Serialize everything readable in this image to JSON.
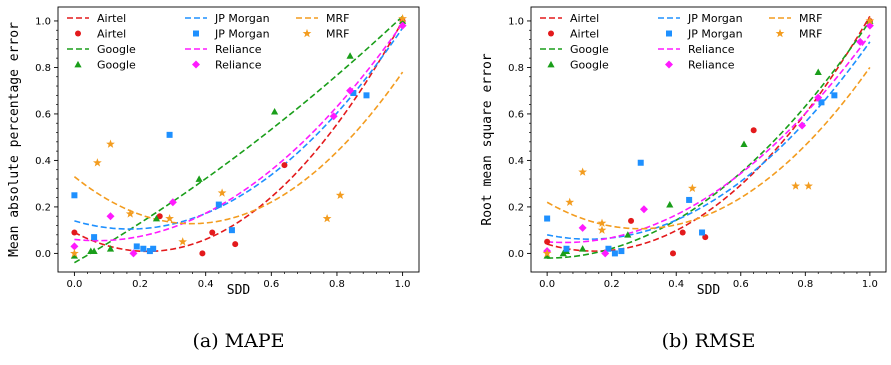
{
  "colors": {
    "Airtel": "#e31a1c",
    "Google": "#1a9e1a",
    "JP Morgan": "#1e90ff",
    "Reliance": "#ff1aff",
    "MRF": "#f39c1f"
  },
  "chart_data": [
    {
      "type": "scatter",
      "caption": "(a) MAPE",
      "xlabel": "SDD",
      "ylabel": "Mean absolute percentage error",
      "xlim": [
        -0.05,
        1.05
      ],
      "ylim": [
        -0.08,
        1.06
      ],
      "xticks": [
        "0.0",
        "0.2",
        "0.4",
        "0.6",
        "0.8",
        "1.0"
      ],
      "yticks": [
        "0.0",
        "0.2",
        "0.4",
        "0.6",
        "0.8",
        "1.0"
      ],
      "legend_position": "top-left",
      "legend": [
        {
          "label": "Airtel",
          "series": "Airtel",
          "kind": "line"
        },
        {
          "label": "Airtel",
          "series": "Airtel",
          "kind": "marker"
        },
        {
          "label": "Google",
          "series": "Google",
          "kind": "line"
        },
        {
          "label": "Google",
          "series": "Google",
          "kind": "marker"
        },
        {
          "label": "JP Morgan",
          "series": "JP Morgan",
          "kind": "line"
        },
        {
          "label": "JP Morgan",
          "series": "JP Morgan",
          "kind": "marker"
        },
        {
          "label": "Reliance",
          "series": "Reliance",
          "kind": "line"
        },
        {
          "label": "Reliance",
          "series": "Reliance",
          "kind": "marker"
        },
        {
          "label": "MRF",
          "series": "MRF",
          "kind": "line"
        },
        {
          "label": "MRF",
          "series": "MRF",
          "kind": "marker"
        }
      ],
      "series": [
        {
          "name": "Airtel",
          "marker": "circle",
          "points": [
            [
              0.0,
              0.09
            ],
            [
              0.26,
              0.16
            ],
            [
              0.39,
              0.0
            ],
            [
              0.42,
              0.09
            ],
            [
              0.49,
              0.04
            ],
            [
              0.64,
              0.38
            ],
            [
              1.0,
              1.0
            ]
          ],
          "fit": [
            0.09,
            -0.73,
            1.64
          ]
        },
        {
          "name": "Google",
          "marker": "triangle",
          "points": [
            [
              0.0,
              -0.01
            ],
            [
              0.05,
              0.01
            ],
            [
              0.06,
              0.01
            ],
            [
              0.11,
              0.02
            ],
            [
              0.25,
              0.15
            ],
            [
              0.38,
              0.32
            ],
            [
              0.61,
              0.61
            ],
            [
              0.84,
              0.85
            ],
            [
              1.0,
              1.0
            ]
          ],
          "fit": [
            -0.04,
            0.8,
            0.26
          ]
        },
        {
          "name": "JP Morgan",
          "marker": "square",
          "points": [
            [
              0.0,
              0.25
            ],
            [
              0.06,
              0.07
            ],
            [
              0.19,
              0.03
            ],
            [
              0.21,
              0.02
            ],
            [
              0.23,
              0.01
            ],
            [
              0.24,
              0.02
            ],
            [
              0.29,
              0.51
            ],
            [
              0.44,
              0.21
            ],
            [
              0.48,
              0.1
            ],
            [
              0.85,
              0.69
            ],
            [
              0.89,
              0.68
            ]
          ],
          "fit": [
            0.14,
            -0.42,
            1.25
          ]
        },
        {
          "name": "Reliance",
          "marker": "diamond",
          "points": [
            [
              0.0,
              0.03
            ],
            [
              0.11,
              0.16
            ],
            [
              0.18,
              0.0
            ],
            [
              0.3,
              0.22
            ],
            [
              0.79,
              0.59
            ],
            [
              0.84,
              0.7
            ],
            [
              1.0,
              0.98
            ]
          ],
          "fit": [
            0.06,
            -0.15,
            1.08
          ]
        },
        {
          "name": "MRF",
          "marker": "star",
          "points": [
            [
              0.0,
              0.0
            ],
            [
              0.07,
              0.39
            ],
            [
              0.11,
              0.47
            ],
            [
              0.17,
              0.17
            ],
            [
              0.29,
              0.15
            ],
            [
              0.33,
              0.05
            ],
            [
              0.45,
              0.26
            ],
            [
              0.77,
              0.15
            ],
            [
              0.81,
              0.25
            ],
            [
              1.0,
              1.01
            ]
          ],
          "fit": [
            0.33,
            -1.13,
            1.58
          ]
        }
      ]
    },
    {
      "type": "scatter",
      "caption": "(b) RMSE",
      "xlabel": "SDD",
      "ylabel": "Root mean square error",
      "xlim": [
        -0.05,
        1.05
      ],
      "ylim": [
        -0.08,
        1.06
      ],
      "xticks": [
        "0.0",
        "0.2",
        "0.4",
        "0.6",
        "0.8",
        "1.0"
      ],
      "yticks": [
        "0.0",
        "0.2",
        "0.4",
        "0.6",
        "0.8",
        "1.0"
      ],
      "legend_position": "top-left",
      "legend": [
        {
          "label": "Airtel",
          "series": "Airtel",
          "kind": "line"
        },
        {
          "label": "Airtel",
          "series": "Airtel",
          "kind": "marker"
        },
        {
          "label": "Google",
          "series": "Google",
          "kind": "line"
        },
        {
          "label": "Google",
          "series": "Google",
          "kind": "marker"
        },
        {
          "label": "JP Morgan",
          "series": "JP Morgan",
          "kind": "line"
        },
        {
          "label": "JP Morgan",
          "series": "JP Morgan",
          "kind": "marker"
        },
        {
          "label": "Reliance",
          "series": "Reliance",
          "kind": "line"
        },
        {
          "label": "Reliance",
          "series": "Reliance",
          "kind": "marker"
        },
        {
          "label": "MRF",
          "series": "MRF",
          "kind": "line"
        },
        {
          "label": "MRF",
          "series": "MRF",
          "kind": "marker"
        }
      ],
      "series": [
        {
          "name": "Airtel",
          "marker": "circle",
          "points": [
            [
              0.0,
              0.05
            ],
            [
              0.26,
              0.14
            ],
            [
              0.39,
              0.0
            ],
            [
              0.42,
              0.09
            ],
            [
              0.49,
              0.07
            ],
            [
              0.64,
              0.53
            ],
            [
              1.0,
              1.0
            ]
          ],
          "fit": [
            0.04,
            -0.41,
            1.39
          ]
        },
        {
          "name": "Google",
          "marker": "triangle",
          "points": [
            [
              0.0,
              -0.01
            ],
            [
              0.05,
              0.0
            ],
            [
              0.06,
              0.01
            ],
            [
              0.11,
              0.02
            ],
            [
              0.25,
              0.08
            ],
            [
              0.38,
              0.21
            ],
            [
              0.61,
              0.47
            ],
            [
              0.84,
              0.78
            ],
            [
              1.0,
              1.0
            ]
          ],
          "fit": [
            -0.02,
            0.0,
            1.02
          ]
        },
        {
          "name": "JP Morgan",
          "marker": "square",
          "points": [
            [
              0.0,
              0.15
            ],
            [
              0.06,
              0.02
            ],
            [
              0.19,
              0.02
            ],
            [
              0.21,
              0.0
            ],
            [
              0.23,
              0.01
            ],
            [
              0.29,
              0.39
            ],
            [
              0.44,
              0.23
            ],
            [
              0.48,
              0.09
            ],
            [
              0.85,
              0.65
            ],
            [
              0.89,
              0.68
            ]
          ],
          "fit": [
            0.08,
            -0.29,
            1.12
          ]
        },
        {
          "name": "Reliance",
          "marker": "diamond",
          "points": [
            [
              0.0,
              0.01
            ],
            [
              0.11,
              0.11
            ],
            [
              0.18,
              0.0
            ],
            [
              0.3,
              0.19
            ],
            [
              0.79,
              0.55
            ],
            [
              0.84,
              0.67
            ],
            [
              0.97,
              0.91
            ],
            [
              1.0,
              0.98
            ]
          ],
          "fit": [
            0.05,
            -0.11,
            1.0
          ]
        },
        {
          "name": "MRF",
          "marker": "star",
          "points": [
            [
              0.0,
              0.0
            ],
            [
              0.07,
              0.22
            ],
            [
              0.11,
              0.35
            ],
            [
              0.17,
              0.13
            ],
            [
              0.17,
              0.1
            ],
            [
              0.45,
              0.28
            ],
            [
              0.77,
              0.29
            ],
            [
              0.81,
              0.29
            ],
            [
              1.0,
              1.0
            ]
          ],
          "fit": [
            0.22,
            -0.79,
            1.37
          ]
        }
      ]
    }
  ]
}
